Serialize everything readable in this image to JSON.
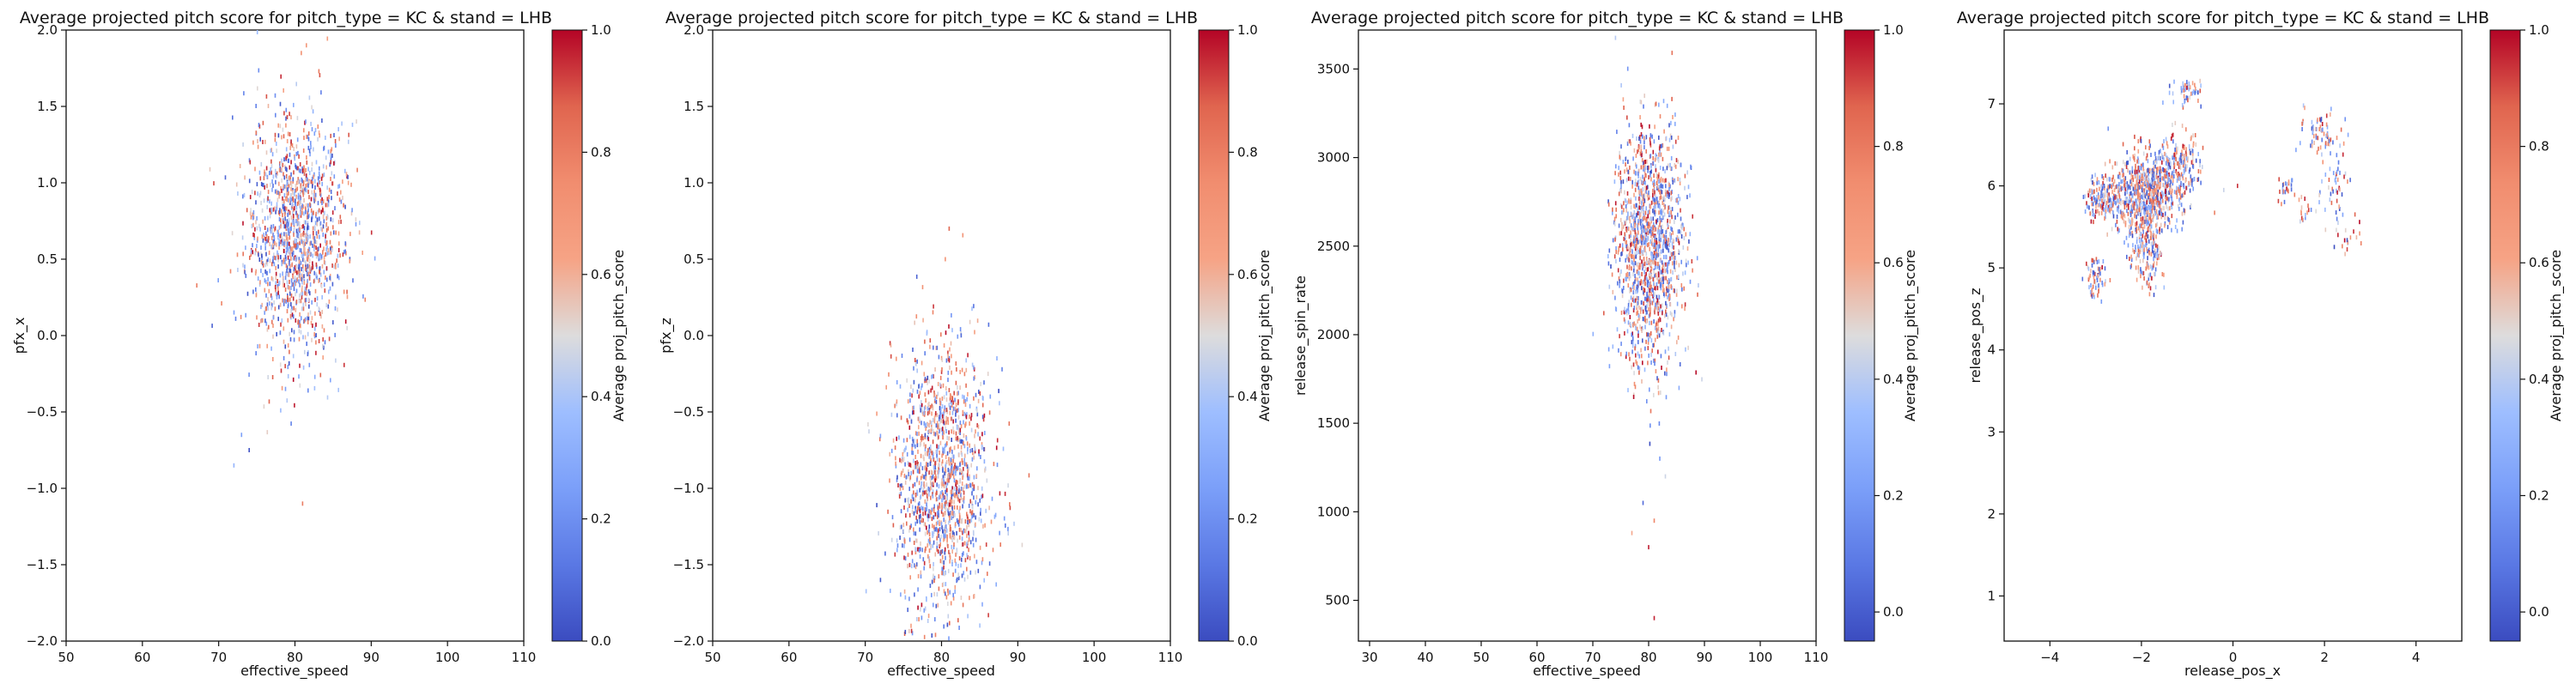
{
  "chart_data": [
    {
      "type": "scatter",
      "title": "Average projected pitch score for pitch_type = KC & stand = LHB",
      "xlabel": "effective_speed",
      "ylabel": "pfx_x",
      "colorbar_label": "Average proj_pitch_score",
      "xlim": [
        50,
        110
      ],
      "ylim": [
        -2.0,
        2.0
      ],
      "xticks": [
        50,
        60,
        70,
        80,
        90,
        100,
        110
      ],
      "yticks": [
        -2.0,
        -1.5,
        -1.0,
        -0.5,
        0.0,
        0.5,
        1.0,
        1.5,
        2.0
      ],
      "xtick_labels": [
        "50",
        "60",
        "70",
        "80",
        "90",
        "100",
        "110"
      ],
      "ytick_labels": [
        "−2.0",
        "−1.5",
        "−1.0",
        "−0.5",
        "0.0",
        "0.5",
        "1.0",
        "1.5",
        "2.0"
      ],
      "clim": [
        0.0,
        1.0
      ],
      "cticks": [
        0.0,
        0.2,
        0.4,
        0.6,
        0.8,
        1.0
      ],
      "ctick_labels": [
        "0.0",
        "0.2",
        "0.4",
        "0.6",
        "0.8",
        "1.0"
      ],
      "colormap": "coolwarm",
      "grid": false,
      "clusters": [
        {
          "cx": 80,
          "cy": 0.65,
          "sx": 3.2,
          "sy": 0.38,
          "n": 1400
        }
      ],
      "outliers": [
        [
          81.5,
          1.9
        ],
        [
          73.0,
          -0.65
        ],
        [
          74.0,
          -0.75
        ],
        [
          81.0,
          -1.1
        ],
        [
          72.0,
          -0.85
        ]
      ]
    },
    {
      "type": "scatter",
      "title": "Average projected pitch score for pitch_type = KC & stand = LHB",
      "xlabel": "effective_speed",
      "ylabel": "pfx_z",
      "colorbar_label": "Average proj_pitch_score",
      "xlim": [
        50,
        110
      ],
      "ylim": [
        -2.0,
        2.0
      ],
      "xticks": [
        50,
        60,
        70,
        80,
        90,
        100,
        110
      ],
      "yticks": [
        -2.0,
        -1.5,
        -1.0,
        -0.5,
        0.0,
        0.5,
        1.0,
        1.5,
        2.0
      ],
      "xtick_labels": [
        "50",
        "60",
        "70",
        "80",
        "90",
        "100",
        "110"
      ],
      "ytick_labels": [
        "−2.0",
        "−1.5",
        "−1.0",
        "−0.5",
        "0.0",
        "0.5",
        "1.0",
        "1.5",
        "2.0"
      ],
      "clim": [
        0.0,
        1.0
      ],
      "cticks": [
        0.0,
        0.2,
        0.4,
        0.6,
        0.8,
        1.0
      ],
      "ctick_labels": [
        "0.0",
        "0.2",
        "0.4",
        "0.6",
        "0.8",
        "1.0"
      ],
      "colormap": "coolwarm",
      "grid": false,
      "clusters": [
        {
          "cx": 80,
          "cy": -0.95,
          "sx": 3.2,
          "sy": 0.42,
          "n": 1400
        }
      ],
      "outliers": [
        [
          81.0,
          0.7
        ],
        [
          80.5,
          0.5
        ],
        [
          72.0,
          -1.6
        ],
        [
          76.0,
          -1.9
        ]
      ]
    },
    {
      "type": "scatter",
      "title": "Average projected pitch score for pitch_type = KC & stand = LHB",
      "xlabel": "effective_speed",
      "ylabel": "release_spin_rate",
      "colorbar_label": "Average proj_pitch_score",
      "xlim": [
        28,
        110
      ],
      "ylim": [
        270,
        3720
      ],
      "xticks": [
        30,
        40,
        50,
        60,
        70,
        80,
        90,
        100,
        110
      ],
      "yticks": [
        500,
        1000,
        1500,
        2000,
        2500,
        3000,
        3500
      ],
      "xtick_labels": [
        "30",
        "40",
        "50",
        "60",
        "70",
        "80",
        "90",
        "100",
        "110"
      ],
      "ytick_labels": [
        "500",
        "1000",
        "1500",
        "2000",
        "2500",
        "3000",
        "3500"
      ],
      "clim": [
        -0.05,
        1.0
      ],
      "cticks": [
        0.0,
        0.2,
        0.4,
        0.6,
        0.8,
        1.0
      ],
      "ctick_labels": [
        "0.0",
        "0.2",
        "0.4",
        "0.6",
        "0.8",
        "1.0"
      ],
      "colormap": "coolwarm",
      "grid": false,
      "clusters": [
        {
          "cx": 80,
          "cy": 2500,
          "sx": 3.0,
          "sy": 330,
          "n": 1400
        }
      ],
      "outliers": [
        [
          80.0,
          800
        ],
        [
          81.0,
          950
        ],
        [
          77.0,
          880
        ],
        [
          83.0,
          1200
        ],
        [
          81.0,
          400
        ],
        [
          79.0,
          1050
        ],
        [
          82.0,
          1300
        ]
      ]
    },
    {
      "type": "scatter",
      "title": "Average projected pitch score for pitch_type = KC & stand = LHB",
      "xlabel": "release_pos_x",
      "ylabel": "release_pos_z",
      "colorbar_label": "Average proj_pitch_score",
      "xlim": [
        -5.0,
        5.0
      ],
      "ylim": [
        0.45,
        7.9
      ],
      "xticks": [
        -4,
        -2,
        0,
        2,
        4
      ],
      "yticks": [
        1,
        2,
        3,
        4,
        5,
        6,
        7
      ],
      "xtick_labels": [
        "−4",
        "−2",
        "0",
        "2",
        "4"
      ],
      "ytick_labels": [
        "1",
        "2",
        "3",
        "4",
        "5",
        "6",
        "7"
      ],
      "clim": [
        -0.05,
        1.0
      ],
      "cticks": [
        0.0,
        0.2,
        0.4,
        0.6,
        0.8,
        1.0
      ],
      "ctick_labels": [
        "0.0",
        "0.2",
        "0.4",
        "0.6",
        "0.8",
        "1.0"
      ],
      "colormap": "coolwarm",
      "grid": false,
      "clusters": [
        {
          "cx": -1.9,
          "cy": 5.9,
          "sx": 0.35,
          "sy": 0.25,
          "n": 650
        },
        {
          "cx": -1.2,
          "cy": 6.2,
          "sx": 0.25,
          "sy": 0.22,
          "n": 220
        },
        {
          "cx": -2.8,
          "cy": 5.85,
          "sx": 0.22,
          "sy": 0.15,
          "n": 180
        },
        {
          "cx": -1.9,
          "cy": 5.15,
          "sx": 0.18,
          "sy": 0.22,
          "n": 160
        },
        {
          "cx": -3.0,
          "cy": 4.9,
          "sx": 0.12,
          "sy": 0.12,
          "n": 60
        },
        {
          "cx": -1.0,
          "cy": 7.15,
          "sx": 0.16,
          "sy": 0.09,
          "n": 50
        },
        {
          "cx": 1.9,
          "cy": 6.65,
          "sx": 0.22,
          "sy": 0.12,
          "n": 60
        },
        {
          "cx": 2.2,
          "cy": 6.1,
          "sx": 0.2,
          "sy": 0.25,
          "n": 55
        },
        {
          "cx": 1.2,
          "cy": 6.0,
          "sx": 0.12,
          "sy": 0.12,
          "n": 25
        },
        {
          "cx": 1.6,
          "cy": 5.7,
          "sx": 0.12,
          "sy": 0.1,
          "n": 18
        },
        {
          "cx": 2.5,
          "cy": 5.4,
          "sx": 0.12,
          "sy": 0.1,
          "n": 15
        }
      ],
      "outliers": [
        [
          -0.2,
          5.95
        ],
        [
          0.1,
          6.0
        ],
        [
          2.8,
          5.3
        ]
      ]
    }
  ]
}
